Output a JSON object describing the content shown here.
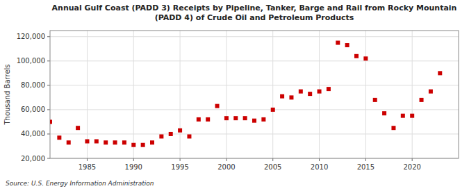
{
  "chart_data": {
    "type": "scatter",
    "title": "Annual Gulf Coast (PADD 3) Receipts by Pipeline, Tanker, Barge and Rail from Rocky Mountain\n(PADD 4) of Crude Oil and Petroleum Products",
    "ylabel": "Thousand Barrels",
    "source": "Source: U.S. Energy Information Administration",
    "x": [
      1981,
      1982,
      1983,
      1984,
      1985,
      1986,
      1987,
      1988,
      1989,
      1990,
      1991,
      1992,
      1993,
      1994,
      1995,
      1996,
      1997,
      1998,
      1999,
      2000,
      2001,
      2002,
      2003,
      2004,
      2005,
      2006,
      2007,
      2008,
      2009,
      2010,
      2011,
      2012,
      2013,
      2014,
      2015,
      2016,
      2017,
      2018,
      2019,
      2020,
      2021,
      2022,
      2023,
      2024
    ],
    "values": [
      50000,
      37000,
      33000,
      45000,
      34000,
      34000,
      33000,
      33000,
      33000,
      31000,
      31000,
      33000,
      38000,
      40000,
      43000,
      38000,
      52000,
      52000,
      63000,
      53000,
      53000,
      53000,
      51000,
      52000,
      60000,
      71000,
      70000,
      75000,
      73000,
      75000,
      77000,
      115000,
      113000,
      104000,
      102000,
      68000,
      57000,
      45000,
      55000,
      55000,
      68000,
      75000,
      90000,
      null
    ],
    "color": "#cc0000",
    "marker": "square",
    "xlim": [
      1981,
      2025
    ],
    "xticks": [
      1985,
      1990,
      1995,
      2000,
      2005,
      2010,
      2015,
      2020
    ],
    "ylim": [
      20000,
      125000
    ],
    "yticks": [
      {
        "value": 20000,
        "label": "20,000"
      },
      {
        "value": 40000,
        "label": "40,000"
      },
      {
        "value": 60000,
        "label": "60,000"
      },
      {
        "value": 80000,
        "label": "80,000"
      },
      {
        "value": 100000,
        "label": "100,000"
      },
      {
        "value": 120000,
        "label": "120,000"
      }
    ],
    "grid": true
  }
}
